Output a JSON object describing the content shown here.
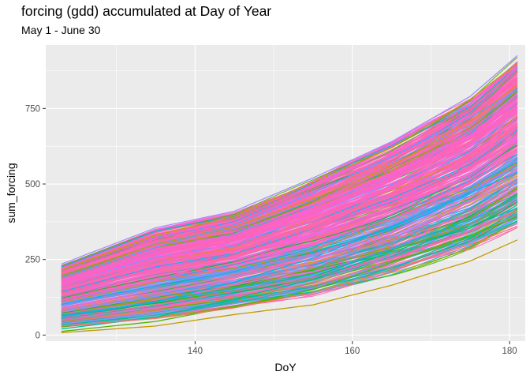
{
  "title": "forcing (gdd) accumulated at Day of Year",
  "subtitle": "May 1 - June 30",
  "chart_data": {
    "type": "line",
    "title": "forcing (gdd) accumulated at Day of Year",
    "subtitle": "May 1 - June 30",
    "xlabel": "DoY",
    "ylabel": "sum_forcing",
    "xlim": [
      121,
      182
    ],
    "ylim": [
      -20,
      960
    ],
    "x_ticks": [
      140,
      160,
      180
    ],
    "y_ticks": [
      0,
      250,
      500,
      750
    ],
    "x_tick_labels": [
      "140",
      "160",
      "180"
    ],
    "y_tick_labels": [
      "0",
      "250",
      "500",
      "750"
    ],
    "grid": true,
    "legend": "none",
    "x_range": [
      123,
      181
    ],
    "series_count": 420,
    "palette": [
      "#F8766D",
      "#C49A00",
      "#53B400",
      "#00C094",
      "#00B6EB",
      "#A58AFF",
      "#FB61D7",
      "#FF64B0",
      "#619CFF",
      "#00BA38"
    ],
    "series": [
      {
        "x": [
          123,
          135,
          145,
          155,
          165,
          175,
          181
        ],
        "y": [
          8,
          30,
          68,
          100,
          165,
          245,
          315
        ],
        "color": "#C49A00"
      },
      {
        "x": [
          123,
          135,
          145,
          155,
          165,
          175,
          181
        ],
        "y": [
          12,
          45,
          95,
          150,
          240,
          330,
          390
        ],
        "color": "#53B400"
      },
      {
        "x": [
          123,
          135,
          145,
          155,
          165,
          175,
          181
        ],
        "y": [
          20,
          60,
          120,
          185,
          275,
          360,
          420
        ],
        "color": "#00C094"
      },
      {
        "x": [
          123,
          135,
          145,
          155,
          165,
          175,
          181
        ],
        "y": [
          60,
          110,
          175,
          255,
          360,
          470,
          540
        ],
        "color": "#00B6EB"
      },
      {
        "x": [
          123,
          135,
          145,
          155,
          165,
          175,
          181
        ],
        "y": [
          110,
          180,
          260,
          350,
          465,
          590,
          670
        ],
        "color": "#FF64B0"
      },
      {
        "x": [
          123,
          135,
          145,
          155,
          165,
          175,
          181
        ],
        "y": [
          150,
          230,
          310,
          410,
          530,
          660,
          740
        ],
        "color": "#FB61D7"
      },
      {
        "x": [
          123,
          135,
          145,
          155,
          165,
          175,
          181
        ],
        "y": [
          190,
          290,
          365,
          470,
          590,
          720,
          810
        ],
        "color": "#619CFF"
      },
      {
        "x": [
          123,
          135,
          145,
          155,
          165,
          175,
          181
        ],
        "y": [
          235,
          355,
          410,
          520,
          640,
          790,
          925
        ],
        "color": "#A58AFF"
      },
      {
        "x": [
          123,
          135,
          145,
          155,
          165,
          175,
          181
        ],
        "y": [
          215,
          330,
          395,
          505,
          620,
          780,
          900
        ],
        "color": "#C49A00"
      },
      {
        "x": [
          123,
          135,
          145,
          155,
          165,
          175,
          181
        ],
        "y": [
          30,
          55,
          90,
          140,
          215,
          300,
          360
        ],
        "color": "#F8766D"
      }
    ]
  }
}
